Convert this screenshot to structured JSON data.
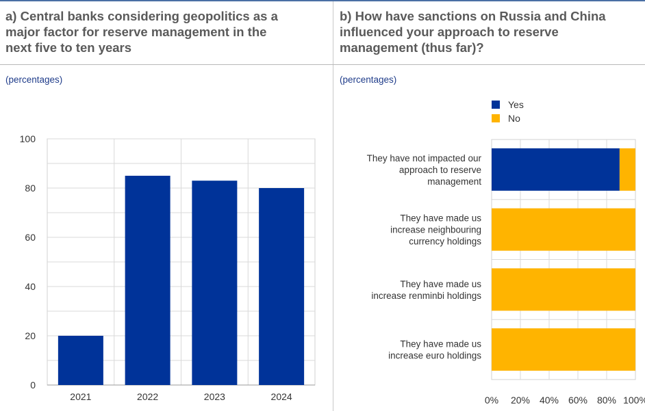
{
  "panel_a": {
    "title_lines": [
      "a) Central banks considering geopolitics as a",
      "major factor for reserve management in the",
      "next five to ten years"
    ],
    "unit": "(percentages)"
  },
  "panel_b": {
    "title_lines": [
      "b) How have sanctions on Russia and China",
      "influenced your approach to reserve",
      "management (thus far)?"
    ],
    "unit": "(percentages)"
  },
  "chart_data": [
    {
      "type": "bar",
      "categories": [
        "2021",
        "2022",
        "2023",
        "2024"
      ],
      "values": [
        20,
        85,
        83,
        80
      ],
      "ylim": [
        0,
        100
      ],
      "yticks": [
        0,
        20,
        40,
        60,
        80,
        100
      ],
      "grid": true,
      "colors": {
        "bar": "#003399"
      }
    },
    {
      "type": "bar",
      "orientation": "horizontal",
      "stacked": true,
      "categories": [
        [
          "They have not impacted our",
          "approach to reserve",
          "management"
        ],
        [
          "They have made us",
          "increase neighbouring",
          "currency holdings"
        ],
        [
          "They have made us",
          "increase renminbi holdings"
        ],
        [
          "They have made us",
          "increase euro holdings"
        ]
      ],
      "series": [
        {
          "name": "Yes",
          "values": [
            89,
            0,
            0,
            0
          ],
          "color": "#003399"
        },
        {
          "name": "No",
          "values": [
            11,
            100,
            100,
            100
          ],
          "color": "#ffb400"
        }
      ],
      "xlim": [
        0,
        100
      ],
      "xticks": [
        "0%",
        "20%",
        "40%",
        "60%",
        "80%",
        "100%"
      ],
      "grid": true,
      "legend_position": "top"
    }
  ]
}
